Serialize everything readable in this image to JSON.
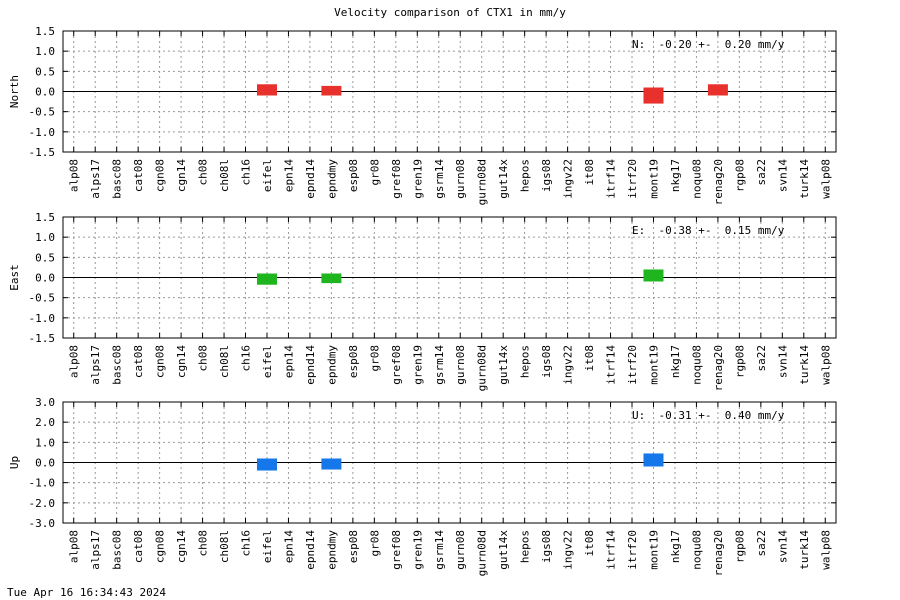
{
  "title": "Velocity comparison of CTX1 in mm/y",
  "footer": "Tue Apr 16 16:34:43 2024",
  "chart_data": {
    "type": "bar",
    "categories": [
      "alp08",
      "alps17",
      "basc08",
      "cat08",
      "cgn08",
      "cgn14",
      "ch08",
      "ch08l",
      "ch16",
      "eifel",
      "epn14",
      "epnd14",
      "epndmy",
      "esp08",
      "gr08",
      "gref08",
      "gren19",
      "gsrm14",
      "gurn08",
      "gurn08d",
      "gut14x",
      "hepos",
      "igs08",
      "ingv22",
      "it08",
      "itrf14",
      "itrf20",
      "mont19",
      "nkg17",
      "noqu08",
      "renag20",
      "rgp08",
      "sa22",
      "svn14",
      "turk14",
      "walp08"
    ],
    "panels": [
      {
        "ylabel": "North",
        "ylim": [
          -1.5,
          1.5
        ],
        "yticks": [
          "1.5",
          "1.0",
          "0.5",
          "0.0",
          "-0.5",
          "-1.0",
          "-1.5"
        ],
        "annotation": "N:  -0.20 +-  0.20 mm/y",
        "color": "#e8302c",
        "values": [
          null,
          null,
          null,
          null,
          null,
          null,
          null,
          null,
          null,
          0.08,
          null,
          null,
          0.04,
          null,
          null,
          null,
          null,
          null,
          null,
          null,
          null,
          null,
          null,
          null,
          null,
          null,
          null,
          -0.2,
          null,
          null,
          0.08,
          null,
          null,
          null,
          null,
          null
        ]
      },
      {
        "ylabel": "East",
        "ylim": [
          -1.5,
          1.5
        ],
        "yticks": [
          "1.5",
          "1.0",
          "0.5",
          "0.0",
          "-0.5",
          "-1.0",
          "-1.5"
        ],
        "annotation": "E:  -0.38 +-  0.15 mm/y",
        "color": "#1fb51f",
        "values": [
          null,
          null,
          null,
          null,
          null,
          null,
          null,
          null,
          null,
          -0.08,
          null,
          null,
          -0.04,
          null,
          null,
          null,
          null,
          null,
          null,
          null,
          null,
          null,
          null,
          null,
          null,
          null,
          null,
          0.1,
          null,
          null,
          null,
          null,
          null,
          null,
          null,
          null
        ]
      },
      {
        "ylabel": "Up",
        "ylim": [
          -3.0,
          3.0
        ],
        "yticks": [
          "3.0",
          "2.0",
          "1.0",
          "0.0",
          "-1.0",
          "-2.0",
          "-3.0"
        ],
        "annotation": "U:  -0.31 +-  0.40 mm/y",
        "color": "#1577ea",
        "values": [
          null,
          null,
          null,
          null,
          null,
          null,
          null,
          null,
          null,
          -0.2,
          null,
          null,
          -0.15,
          null,
          null,
          null,
          null,
          null,
          null,
          null,
          null,
          null,
          null,
          null,
          null,
          null,
          null,
          0.25,
          null,
          null,
          null,
          null,
          null,
          null,
          null,
          null
        ]
      }
    ]
  }
}
